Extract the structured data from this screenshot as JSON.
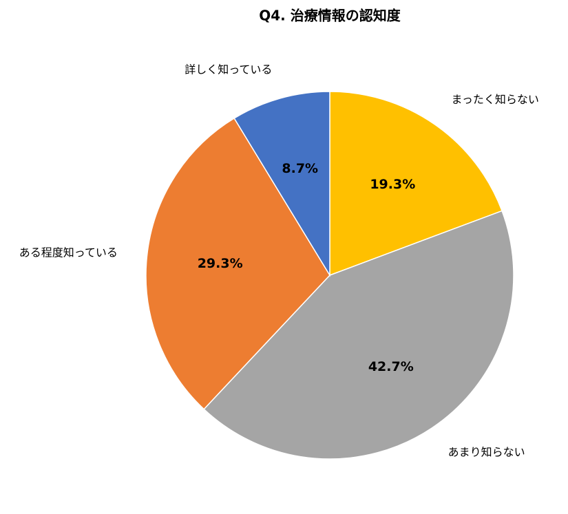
{
  "chart_data": {
    "type": "pie",
    "title": "Q4. 治療情報の認知度",
    "categories": [
      "まったく知らない",
      "あまり知らない",
      "ある程度知っている",
      "詳しく知っている"
    ],
    "values": [
      19.3,
      42.7,
      29.3,
      8.7
    ],
    "value_labels": [
      "19.3%",
      "42.7%",
      "29.3%",
      "8.7%"
    ],
    "colors": [
      "#FFC000",
      "#A5A5A5",
      "#ED7D31",
      "#4472C4"
    ]
  }
}
